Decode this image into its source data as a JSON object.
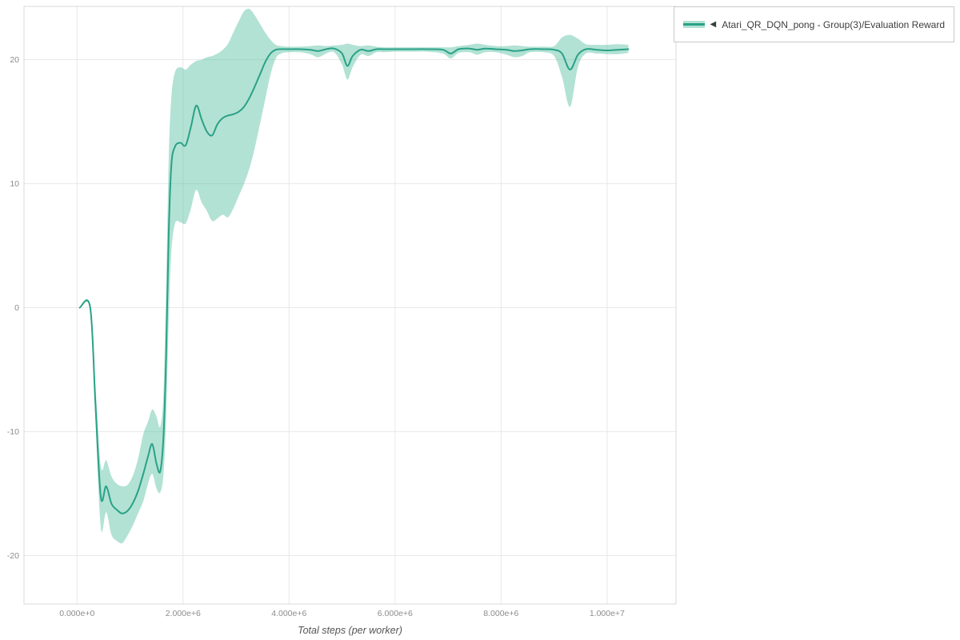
{
  "colors": {
    "line": "#2aa187",
    "band": "rgba(84,190,159,0.45)",
    "grid": "#e8e8e8",
    "axis_border": "#d9d9d9",
    "tick_label": "#8c8c8c",
    "axis_title": "#555555",
    "legend_border": "#c9c9c9",
    "legend_text": "#3d3d3d"
  },
  "legend": {
    "marker": "◀",
    "series_label": "Atari_QR_DQN_pong - Group(3)/Evaluation Reward"
  },
  "chart_data": {
    "type": "line",
    "title": "",
    "xlabel": "Total steps (per worker)",
    "ylabel": "",
    "grid": true,
    "legend_position": "top-right",
    "xlim": [
      -1000000,
      11300000
    ],
    "ylim": [
      -23.9,
      24.3
    ],
    "x_ticks": {
      "values": [
        0,
        2000000,
        4000000,
        6000000,
        8000000,
        10000000
      ],
      "labels": [
        "0.000e+0",
        "2.000e+6",
        "4.000e+6",
        "6.000e+6",
        "8.000e+6",
        "1.000e+7"
      ]
    },
    "y_ticks": {
      "values": [
        -20,
        -10,
        0,
        10,
        20
      ],
      "labels": [
        "-20",
        "-10",
        "0",
        "10",
        "20"
      ]
    },
    "point_format": [
      "step",
      "mean_reward",
      "band_low",
      "band_high"
    ],
    "series": [
      {
        "name": "Atari_QR_DQN_pong - Group(3)/Evaluation Reward",
        "color": "#2aa187",
        "band_color": "rgba(84,190,159,0.45)",
        "points": [
          [
            50000,
            0,
            0,
            0
          ],
          [
            250000,
            0,
            0,
            0
          ],
          [
            350000,
            -8,
            -9.5,
            -6.5
          ],
          [
            450000,
            -15.3,
            -17.8,
            -12.8
          ],
          [
            550000,
            -14.4,
            -16.5,
            -12.3
          ],
          [
            650000,
            -15.8,
            -18.3,
            -13.6
          ],
          [
            750000,
            -16.3,
            -18.8,
            -14.2
          ],
          [
            850000,
            -16.6,
            -19,
            -14.4
          ],
          [
            950000,
            -16.4,
            -18.4,
            -14.3
          ],
          [
            1050000,
            -15.8,
            -17.6,
            -13.6
          ],
          [
            1150000,
            -14.8,
            -16.6,
            -12.2
          ],
          [
            1250000,
            -13.4,
            -15.6,
            -10.2
          ],
          [
            1340000,
            -12,
            -14.2,
            -9.2
          ],
          [
            1420000,
            -11,
            -13.4,
            -8.2
          ],
          [
            1500000,
            -12.6,
            -14.6,
            -8.8
          ],
          [
            1570000,
            -13.2,
            -14.9,
            -9.6
          ],
          [
            1630000,
            -10.5,
            -13.5,
            -7
          ],
          [
            1680000,
            -4,
            -9,
            1.5
          ],
          [
            1730000,
            6,
            -1,
            12
          ],
          [
            1780000,
            11.5,
            4.5,
            17
          ],
          [
            1850000,
            13,
            6.8,
            19
          ],
          [
            1950000,
            13.3,
            6.9,
            19.4
          ],
          [
            2050000,
            13.1,
            6.8,
            19.2
          ],
          [
            2150000,
            14.6,
            8,
            19.6
          ],
          [
            2250000,
            16.3,
            9.5,
            19.9
          ],
          [
            2350000,
            15.2,
            8.5,
            20
          ],
          [
            2450000,
            14.2,
            7.8,
            20.2
          ],
          [
            2550000,
            13.9,
            7,
            20.3
          ],
          [
            2650000,
            14.8,
            7.2,
            20.5
          ],
          [
            2750000,
            15.3,
            7.5,
            20.8
          ],
          [
            2850000,
            15.5,
            7.3,
            21.3
          ],
          [
            2950000,
            15.6,
            8,
            22.2
          ],
          [
            3050000,
            15.8,
            9,
            23.1
          ],
          [
            3150000,
            16.2,
            10,
            23.9
          ],
          [
            3250000,
            16.9,
            11.2,
            24.1
          ],
          [
            3350000,
            17.8,
            12.8,
            23.6
          ],
          [
            3450000,
            18.8,
            14.8,
            22.9
          ],
          [
            3550000,
            19.8,
            16.8,
            22.2
          ],
          [
            3650000,
            20.5,
            18.8,
            21.6
          ],
          [
            3750000,
            20.8,
            20.1,
            21.2
          ],
          [
            3850000,
            20.85,
            20.5,
            21.1
          ],
          [
            4000000,
            20.85,
            20.6,
            21.05
          ],
          [
            4200000,
            20.85,
            20.6,
            21.05
          ],
          [
            4400000,
            20.8,
            20.45,
            21.1
          ],
          [
            4550000,
            20.7,
            20.2,
            21.15
          ],
          [
            4700000,
            20.85,
            20.5,
            21.1
          ],
          [
            4850000,
            20.9,
            20.6,
            21.15
          ],
          [
            5000000,
            20.5,
            19.6,
            21.2
          ],
          [
            5100000,
            19.5,
            18.4,
            21.3
          ],
          [
            5200000,
            20.3,
            19.4,
            21.2
          ],
          [
            5350000,
            20.8,
            20.4,
            21.1
          ],
          [
            5500000,
            20.7,
            20.3,
            21.15
          ],
          [
            5650000,
            20.85,
            20.6,
            21.05
          ],
          [
            5800000,
            20.85,
            20.6,
            21
          ],
          [
            6000000,
            20.85,
            20.65,
            21
          ],
          [
            6300000,
            20.85,
            20.65,
            21
          ],
          [
            6600000,
            20.85,
            20.65,
            21
          ],
          [
            6900000,
            20.8,
            20.5,
            21
          ],
          [
            7050000,
            20.5,
            20.1,
            21
          ],
          [
            7200000,
            20.85,
            20.55,
            21.1
          ],
          [
            7400000,
            20.9,
            20.6,
            21.2
          ],
          [
            7550000,
            20.8,
            20.4,
            21.3
          ],
          [
            7700000,
            20.9,
            20.6,
            21.2
          ],
          [
            7900000,
            20.85,
            20.6,
            21.1
          ],
          [
            8100000,
            20.8,
            20.4,
            21.1
          ],
          [
            8250000,
            20.7,
            20.2,
            21.15
          ],
          [
            8400000,
            20.75,
            20.3,
            21.1
          ],
          [
            8550000,
            20.85,
            20.6,
            21.05
          ],
          [
            8800000,
            20.85,
            20.6,
            21.05
          ],
          [
            9000000,
            20.8,
            20.3,
            21.1
          ],
          [
            9150000,
            20.5,
            18.6,
            21.8
          ],
          [
            9300000,
            19.2,
            16.2,
            22
          ],
          [
            9450000,
            20.4,
            19.4,
            21.7
          ],
          [
            9600000,
            20.85,
            20.5,
            21.25
          ],
          [
            9800000,
            20.8,
            20.5,
            21.2
          ],
          [
            10000000,
            20.75,
            20.45,
            21.2
          ],
          [
            10200000,
            20.8,
            20.45,
            21.25
          ],
          [
            10400000,
            20.85,
            20.55,
            21.2
          ]
        ]
      }
    ]
  }
}
